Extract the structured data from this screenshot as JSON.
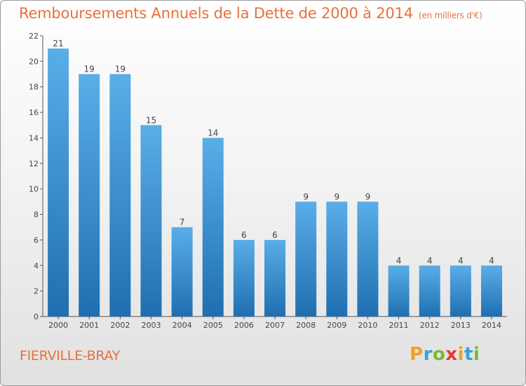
{
  "chart_data": {
    "type": "bar",
    "title": "Remboursements Annuels de la Dette de 2000 à 2014",
    "subtitle": "(en milliers d'€)",
    "categories": [
      "2000",
      "2001",
      "2002",
      "2003",
      "2004",
      "2005",
      "2006",
      "2007",
      "2008",
      "2009",
      "2010",
      "2011",
      "2012",
      "2013",
      "2014"
    ],
    "values": [
      21,
      19,
      19,
      15,
      7,
      14,
      6,
      6,
      9,
      9,
      9,
      4,
      4,
      4,
      4
    ],
    "ylim": [
      0,
      22
    ],
    "yticks": [
      0,
      2,
      4,
      6,
      8,
      10,
      12,
      14,
      16,
      18,
      20,
      22
    ],
    "grid": false,
    "data_labels": true,
    "colors": {
      "bar_light": "#5aaee8",
      "bar_dark": "#1f6fb0",
      "title": "#e9703c"
    }
  },
  "footer": {
    "commune": "FIERVILLE-BRAY",
    "logo": "Proxiti"
  }
}
